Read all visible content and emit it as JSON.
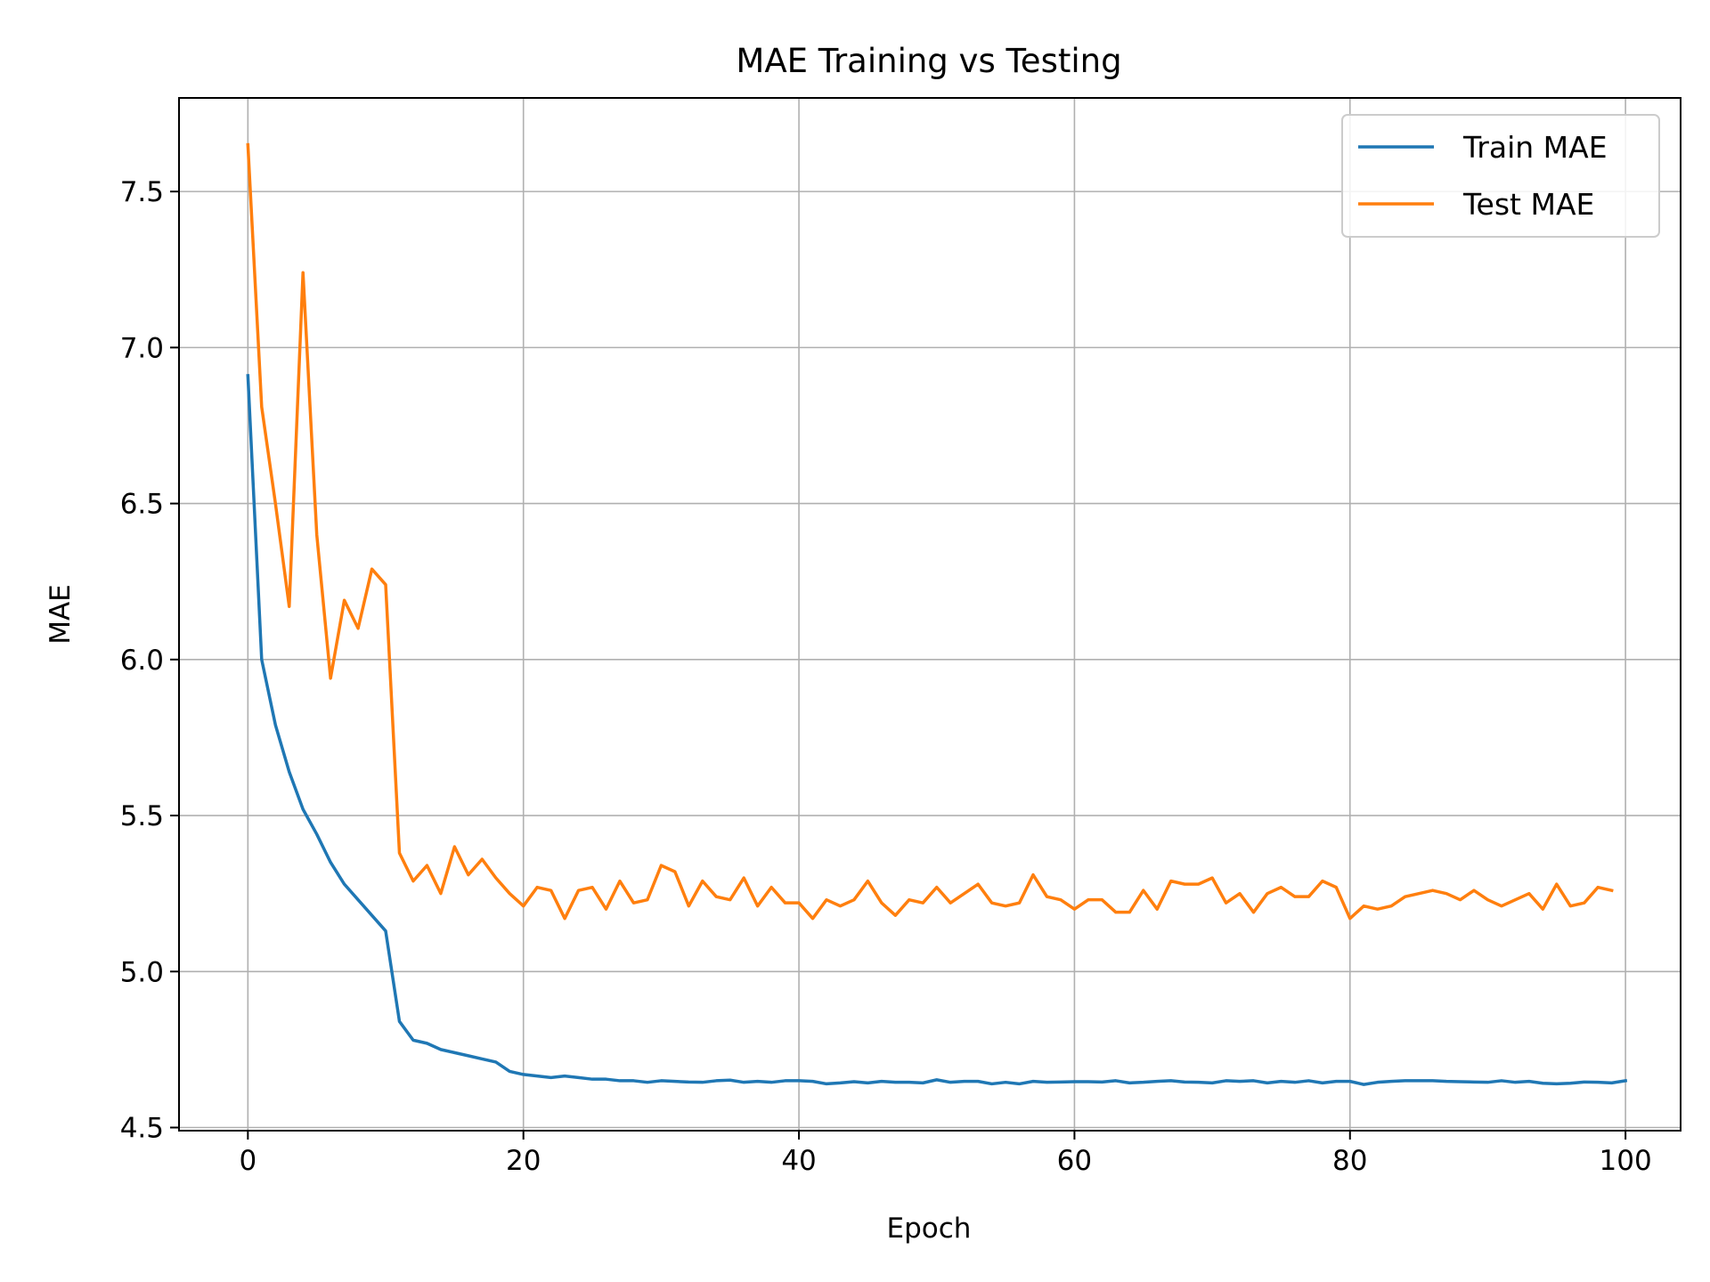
{
  "chart_data": {
    "type": "line",
    "title": "MAE Training vs Testing",
    "xlabel": "Epoch",
    "ylabel": "MAE",
    "xlim": [
      -5,
      104
    ],
    "ylim": [
      4.49,
      7.8
    ],
    "x_ticks": [
      0,
      20,
      40,
      60,
      80,
      100
    ],
    "y_ticks": [
      4.5,
      5.0,
      5.5,
      6.0,
      6.5,
      7.0,
      7.5
    ],
    "grid": true,
    "legend_position": "upper right",
    "series": [
      {
        "name": "Train MAE",
        "color": "#1f77b4",
        "values": [
          6.91,
          6.0,
          5.79,
          5.64,
          5.52,
          5.44,
          5.35,
          5.28,
          5.23,
          5.18,
          5.13,
          4.84,
          4.78,
          4.77,
          4.75,
          4.74,
          4.73,
          4.72,
          4.71,
          4.68,
          4.67,
          4.665,
          4.66,
          4.665,
          4.66,
          4.655,
          4.655,
          4.65,
          4.65,
          4.645,
          4.65,
          4.648,
          4.646,
          4.645,
          4.65,
          4.652,
          4.645,
          4.648,
          4.645,
          4.65,
          4.65,
          4.648,
          4.64,
          4.643,
          4.647,
          4.643,
          4.648,
          4.645,
          4.645,
          4.643,
          4.653,
          4.645,
          4.648,
          4.648,
          4.64,
          4.645,
          4.64,
          4.648,
          4.645,
          4.646,
          4.647,
          4.647,
          4.646,
          4.65,
          4.643,
          4.645,
          4.648,
          4.65,
          4.646,
          4.645,
          4.643,
          4.65,
          4.648,
          4.65,
          4.643,
          4.648,
          4.645,
          4.65,
          4.643,
          4.648,
          4.648,
          4.638,
          4.645,
          4.648,
          4.65,
          4.65,
          4.65,
          4.648,
          4.647,
          4.646,
          4.645,
          4.65,
          4.645,
          4.648,
          4.642,
          4.64,
          4.642,
          4.646,
          4.645,
          4.643,
          4.65
        ]
      },
      {
        "name": "Test MAE",
        "color": "#ff7f0e",
        "values": [
          7.65,
          6.81,
          6.5,
          6.17,
          7.24,
          6.4,
          5.94,
          6.19,
          6.1,
          6.29,
          6.24,
          5.38,
          5.29,
          5.34,
          5.25,
          5.4,
          5.31,
          5.36,
          5.3,
          5.25,
          5.21,
          5.27,
          5.26,
          5.17,
          5.26,
          5.27,
          5.2,
          5.29,
          5.22,
          5.23,
          5.34,
          5.32,
          5.21,
          5.29,
          5.24,
          5.23,
          5.3,
          5.21,
          5.27,
          5.22,
          5.22,
          5.17,
          5.23,
          5.21,
          5.23,
          5.29,
          5.22,
          5.18,
          5.23,
          5.22,
          5.27,
          5.22,
          5.25,
          5.28,
          5.22,
          5.21,
          5.22,
          5.31,
          5.24,
          5.23,
          5.2,
          5.23,
          5.23,
          5.19,
          5.19,
          5.26,
          5.2,
          5.29,
          5.28,
          5.28,
          5.3,
          5.22,
          5.25,
          5.19,
          5.25,
          5.27,
          5.24,
          5.24,
          5.29,
          5.27,
          5.17,
          5.21,
          5.2,
          5.21,
          5.24,
          5.25,
          5.26,
          5.25,
          5.23,
          5.26,
          5.23,
          5.21,
          5.23,
          5.25,
          5.2,
          5.28,
          5.21,
          5.22,
          5.27,
          5.26
        ]
      }
    ]
  }
}
